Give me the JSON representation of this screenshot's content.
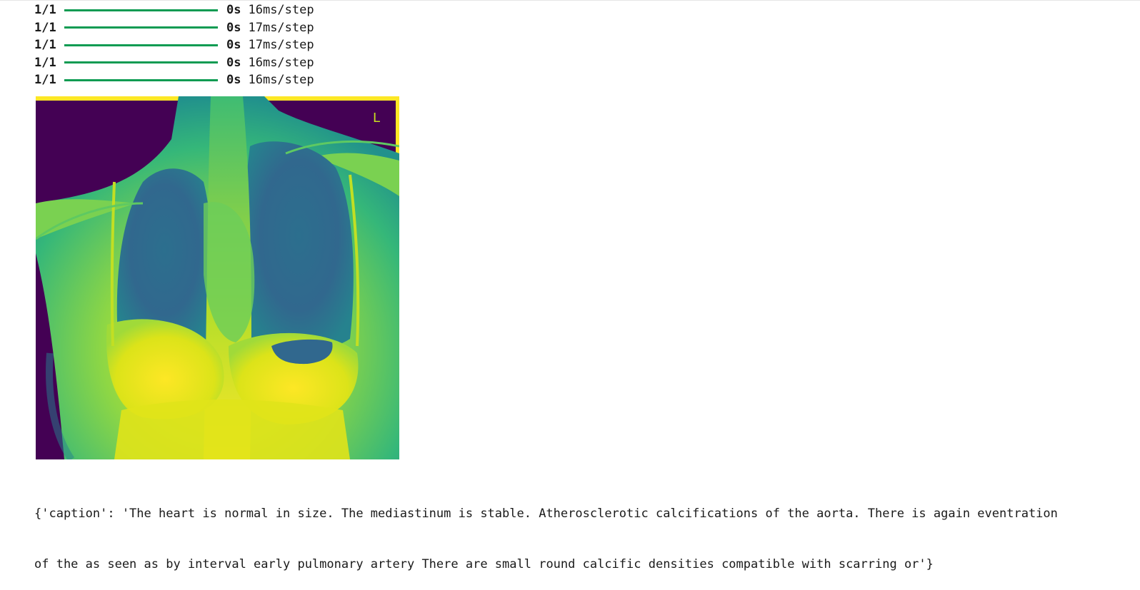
{
  "progress_log": [
    {
      "step": "1/1",
      "progress": 1.0,
      "elapsed": "0s",
      "rate": "16ms/step"
    },
    {
      "step": "1/1",
      "progress": 1.0,
      "elapsed": "0s",
      "rate": "17ms/step"
    },
    {
      "step": "1/1",
      "progress": 1.0,
      "elapsed": "0s",
      "rate": "17ms/step"
    },
    {
      "step": "1/1",
      "progress": 1.0,
      "elapsed": "0s",
      "rate": "16ms/step"
    },
    {
      "step": "1/1",
      "progress": 1.0,
      "elapsed": "0s",
      "rate": "16ms/step"
    }
  ],
  "image": {
    "marker_label": "L"
  },
  "caption_output": {
    "line1": "{'caption': 'The heart is normal in size. The mediastinum is stable. Atherosclerotic calcifications of the aorta. There is again eventration",
    "line2": "of the as seen as by interval early pulmonary artery There are small round calcific densities compatible with scarring or'}"
  },
  "colors": {
    "progress_bar": "#0c9b52",
    "colormap_low": "#440154",
    "colormap_mid": "#21918c",
    "colormap_high": "#fde725"
  }
}
